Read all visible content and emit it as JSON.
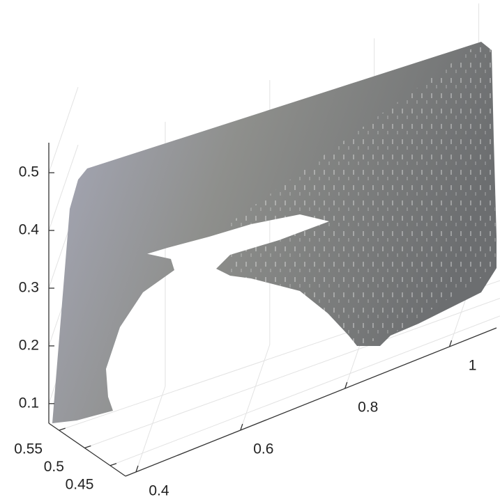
{
  "chart_data": {
    "type": "scatter3d",
    "xlim": [
      0.38,
      1.09
    ],
    "xticks": [
      0.4,
      0.6,
      0.8,
      1
    ],
    "ylim": [
      0.42,
      0.57
    ],
    "yticks": [
      0.45,
      0.5,
      0.55
    ],
    "zlim": [
      0.066,
      0.552
    ],
    "zticks": [
      0.1,
      0.2,
      0.3,
      0.4,
      0.5
    ],
    "grid": true
  }
}
